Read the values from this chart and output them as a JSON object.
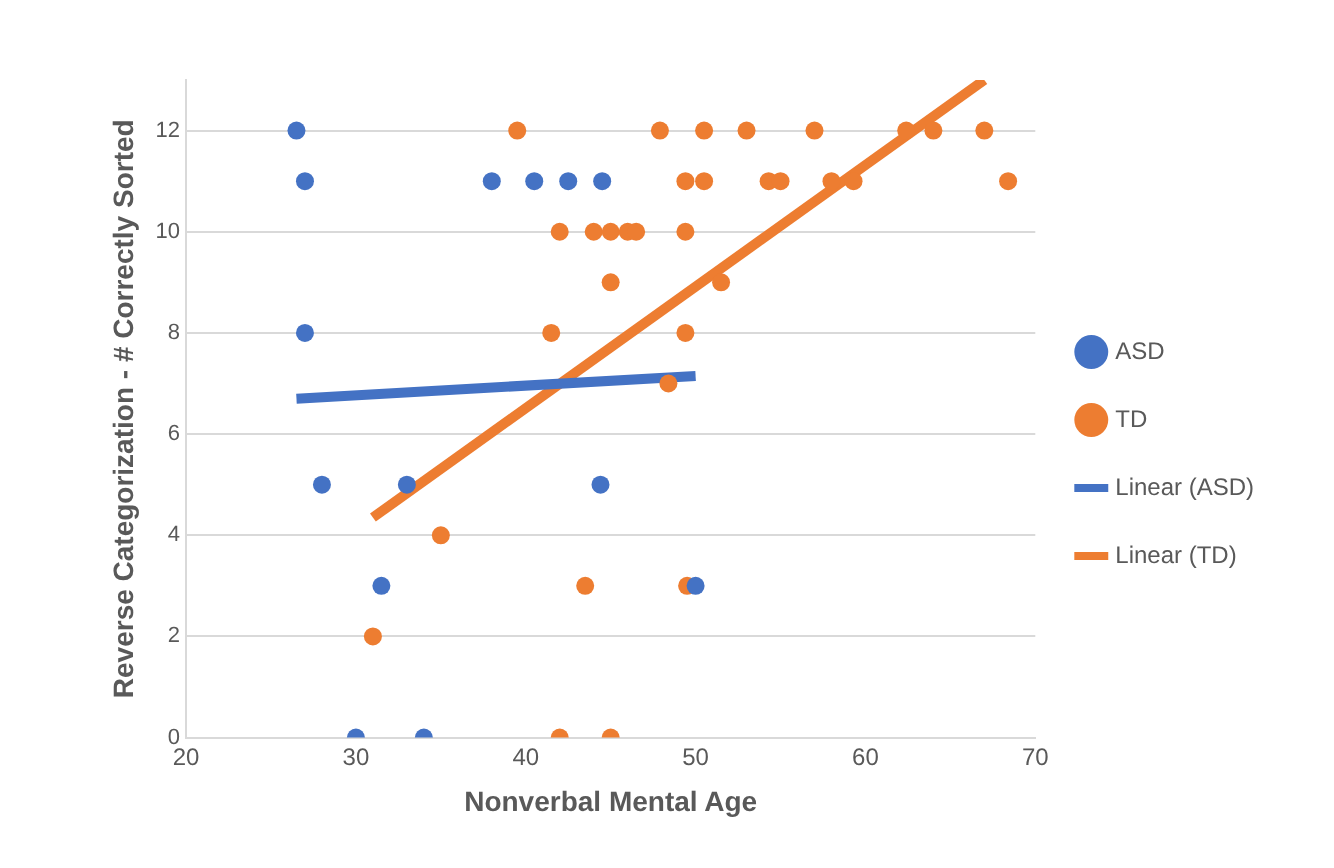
{
  "chart_data": {
    "type": "scatter",
    "xlabel": "Nonverbal Mental Age",
    "ylabel": "Reverse Categorization - # Correctly Sorted",
    "xlim": [
      20,
      70
    ],
    "xticks": [
      20,
      30,
      40,
      50,
      60,
      70
    ],
    "ylim": [
      0,
      13
    ],
    "yticks": [
      0,
      2,
      4,
      6,
      8,
      10,
      12
    ],
    "grid": "y",
    "legend": "right",
    "marker": "circle",
    "series": [
      {
        "name": "ASD",
        "color": "#4472c4",
        "x": [
          26.5,
          27,
          27,
          28,
          33,
          44.4,
          31.5,
          50,
          30,
          34,
          38,
          40.5,
          42.5,
          44.5
        ],
        "values": [
          12,
          11,
          8,
          5,
          5,
          5,
          3,
          3,
          0,
          0,
          11,
          11,
          11,
          11
        ]
      },
      {
        "name": "TD",
        "color": "#ed7d31",
        "x": [
          39.5,
          47.9,
          50.5,
          53,
          57,
          62.4,
          64,
          67,
          49.4,
          50.5,
          54.3,
          55,
          58,
          59.3,
          68.4,
          42,
          44,
          45,
          46,
          46.5,
          49.4,
          45,
          51.5,
          41.5,
          49.4,
          48.4,
          35,
          43.5,
          49.5,
          31,
          42,
          45
        ],
        "values": [
          12,
          12,
          12,
          12,
          12,
          12,
          12,
          12,
          11,
          11,
          11,
          11,
          11,
          11,
          11,
          10,
          10,
          10,
          10,
          10,
          10,
          9,
          9,
          8,
          8,
          7,
          4,
          3,
          3,
          2,
          0,
          0
        ]
      },
      {
        "name": "Linear (ASD)",
        "type": "line",
        "color": "#4472c4",
        "x": [
          26.5,
          50
        ],
        "values": [
          6.7,
          7.15
        ],
        "marker": "none"
      },
      {
        "name": "Linear (TD)",
        "type": "line",
        "color": "#ed7d31",
        "x": [
          31,
          67
        ],
        "values": [
          4.35,
          13
        ],
        "marker": "none"
      }
    ]
  }
}
